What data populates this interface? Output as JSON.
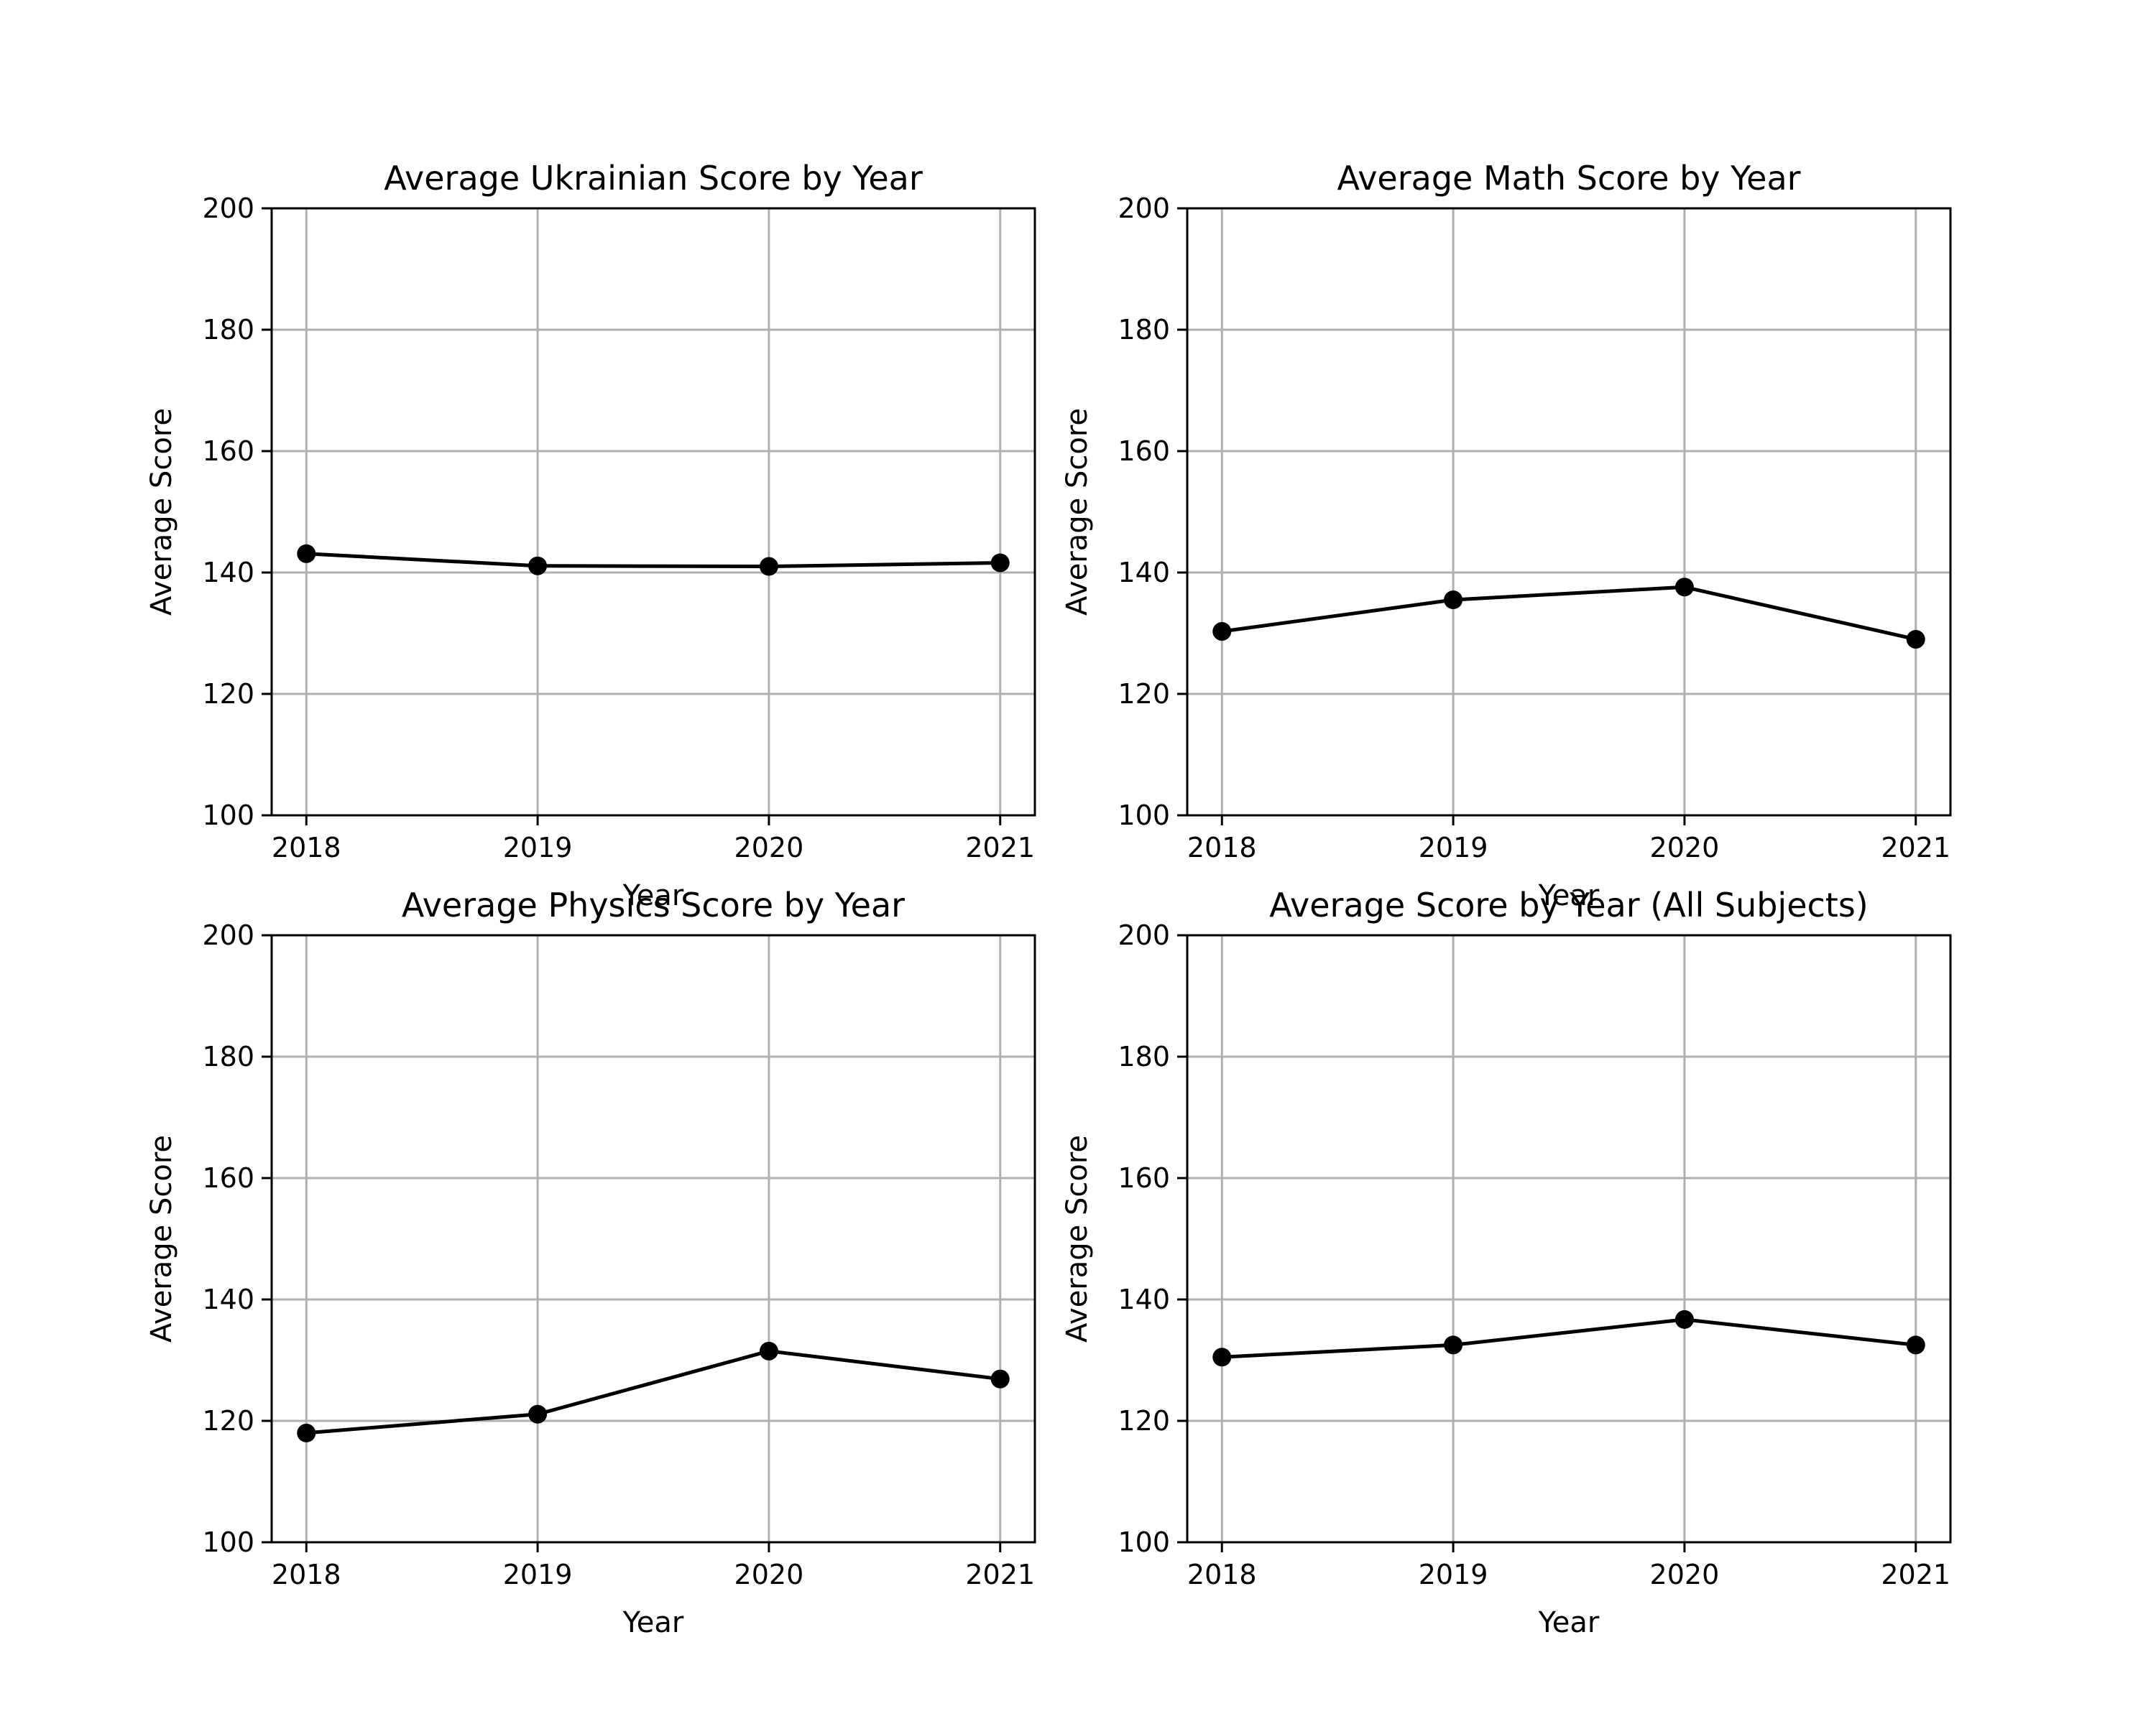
{
  "chart_data": [
    {
      "type": "line",
      "title": "Average Ukrainian Score by Year",
      "xlabel": "Year",
      "ylabel": "Average Score",
      "x": [
        2018,
        2019,
        2020,
        2021
      ],
      "x_ticks": [
        "2018",
        "2019",
        "2020",
        "2021"
      ],
      "y_ticks": [
        "100",
        "120",
        "140",
        "160",
        "180",
        "200"
      ],
      "series": [
        {
          "values": [
            143.1,
            141.1,
            141.0,
            141.6
          ],
          "color": "#000000",
          "marker": "circle"
        }
      ],
      "ylim": [
        100,
        200
      ],
      "grid": true
    },
    {
      "type": "line",
      "title": "Average Math Score by Year",
      "xlabel": "Year",
      "ylabel": "Average Score",
      "x": [
        2018,
        2019,
        2020,
        2021
      ],
      "x_ticks": [
        "2018",
        "2019",
        "2020",
        "2021"
      ],
      "y_ticks": [
        "100",
        "120",
        "140",
        "160",
        "180",
        "200"
      ],
      "series": [
        {
          "values": [
            130.3,
            135.5,
            137.6,
            129.0
          ],
          "color": "#000000",
          "marker": "circle"
        }
      ],
      "ylim": [
        100,
        200
      ],
      "grid": true
    },
    {
      "type": "line",
      "title": "Average Physics Score by Year",
      "xlabel": "Year",
      "ylabel": "Average Score",
      "x": [
        2018,
        2019,
        2020,
        2021
      ],
      "x_ticks": [
        "2018",
        "2019",
        "2020",
        "2021"
      ],
      "y_ticks": [
        "100",
        "120",
        "140",
        "160",
        "180",
        "200"
      ],
      "series": [
        {
          "values": [
            118.0,
            121.1,
            131.5,
            126.9
          ],
          "color": "#000000",
          "marker": "circle"
        }
      ],
      "ylim": [
        100,
        200
      ],
      "grid": true
    },
    {
      "type": "line",
      "title": "Average Score by Year (All Subjects)",
      "xlabel": "Year",
      "ylabel": "Average Score",
      "x": [
        2018,
        2019,
        2020,
        2021
      ],
      "x_ticks": [
        "2018",
        "2019",
        "2020",
        "2021"
      ],
      "y_ticks": [
        "100",
        "120",
        "140",
        "160",
        "180",
        "200"
      ],
      "series": [
        {
          "values": [
            130.5,
            132.5,
            136.7,
            132.5
          ],
          "color": "#000000",
          "marker": "circle"
        }
      ],
      "ylim": [
        100,
        200
      ],
      "grid": true
    }
  ]
}
